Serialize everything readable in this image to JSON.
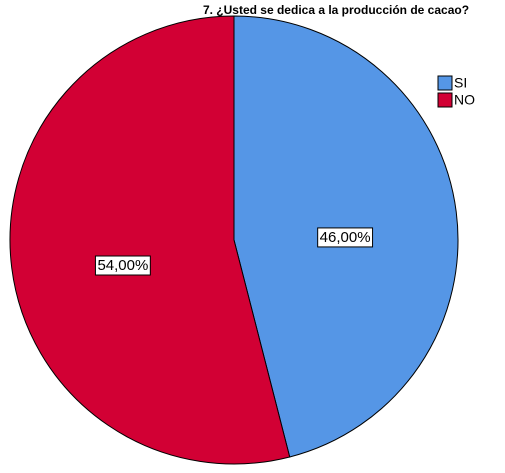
{
  "chart_data": {
    "type": "pie",
    "title": "7. ¿Usted se dedica a la producción de cacao?",
    "categories": [
      "SI",
      "NO"
    ],
    "values": [
      46,
      54
    ],
    "value_labels": [
      "46,00%",
      "54,00%"
    ],
    "colors": [
      "#5596e6",
      "#d20034"
    ],
    "legend": "top-right"
  }
}
